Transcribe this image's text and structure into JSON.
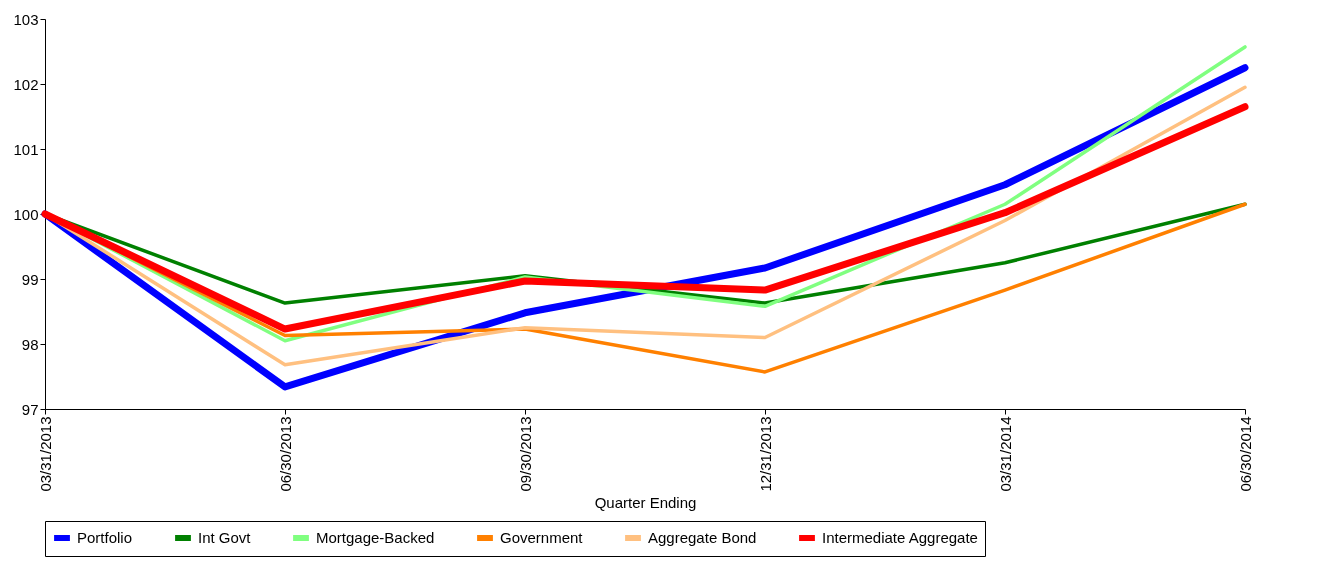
{
  "chart_data": {
    "type": "line",
    "xlabel": "Quarter Ending",
    "categories": [
      "03/31/2013",
      "06/30/2013",
      "09/30/2013",
      "12/31/2013",
      "03/31/2014",
      "06/30/2014"
    ],
    "ylim": [
      97,
      103
    ],
    "yticks": [
      97,
      98,
      99,
      100,
      101,
      102,
      103
    ],
    "grid": false,
    "legend": "bottom",
    "line_style": "solid",
    "series": [
      {
        "name": "Portfolio",
        "color": "#0000ff",
        "values": [
          100,
          97.34,
          98.48,
          99.17,
          100.45,
          102.25
        ]
      },
      {
        "name": "Int Govt",
        "color": "#008000",
        "values": [
          100,
          98.63,
          99.05,
          98.63,
          99.25,
          100.15
        ]
      },
      {
        "name": "Mortgage-Backed",
        "color": "#80ff80",
        "values": [
          100,
          98.05,
          99.03,
          98.58,
          100.15,
          102.57
        ]
      },
      {
        "name": "Government",
        "color": "#ff8000",
        "values": [
          100,
          98.13,
          98.23,
          97.57,
          98.83,
          100.15
        ]
      },
      {
        "name": "Aggregate Bond",
        "color": "#ffc080",
        "values": [
          100,
          97.68,
          98.25,
          98.1,
          99.9,
          101.95
        ]
      },
      {
        "name": "Intermediate Aggregate",
        "color": "#ff0000",
        "values": [
          100,
          98.23,
          98.97,
          98.83,
          100.02,
          101.65
        ]
      }
    ]
  }
}
